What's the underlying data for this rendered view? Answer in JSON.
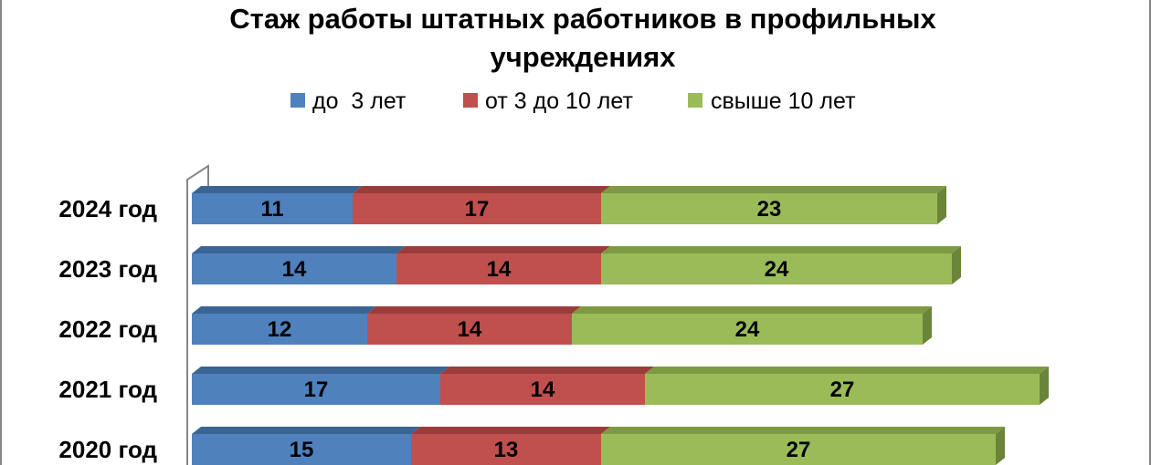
{
  "chart_data": {
    "type": "bar",
    "horizontal": true,
    "stacked": true,
    "three_d": true,
    "title": "Стаж работы штатных работников в профильных учреждениях",
    "xlabel": "",
    "ylabel": "",
    "legend": "top",
    "grid": false,
    "data_labels": true,
    "categories": [
      "2024 год",
      "2023 год",
      "2022 год",
      "2021 год",
      "2020 год"
    ],
    "series": [
      {
        "name": "до  3 лет",
        "color": "#4F81BD",
        "top_color": "#3A6494",
        "side_color": "#2F5480",
        "values": [
          11,
          14,
          12,
          17,
          15
        ]
      },
      {
        "name": "от 3 до 10 лет",
        "color": "#C0504D",
        "top_color": "#9A3D3A",
        "side_color": "#8A3532",
        "values": [
          17,
          14,
          14,
          14,
          13
        ]
      },
      {
        "name": "свыше 10 лет",
        "color": "#9BBB59",
        "top_color": "#7D9A43",
        "side_color": "#6A853A",
        "values": [
          23,
          24,
          24,
          27,
          27
        ]
      }
    ]
  }
}
